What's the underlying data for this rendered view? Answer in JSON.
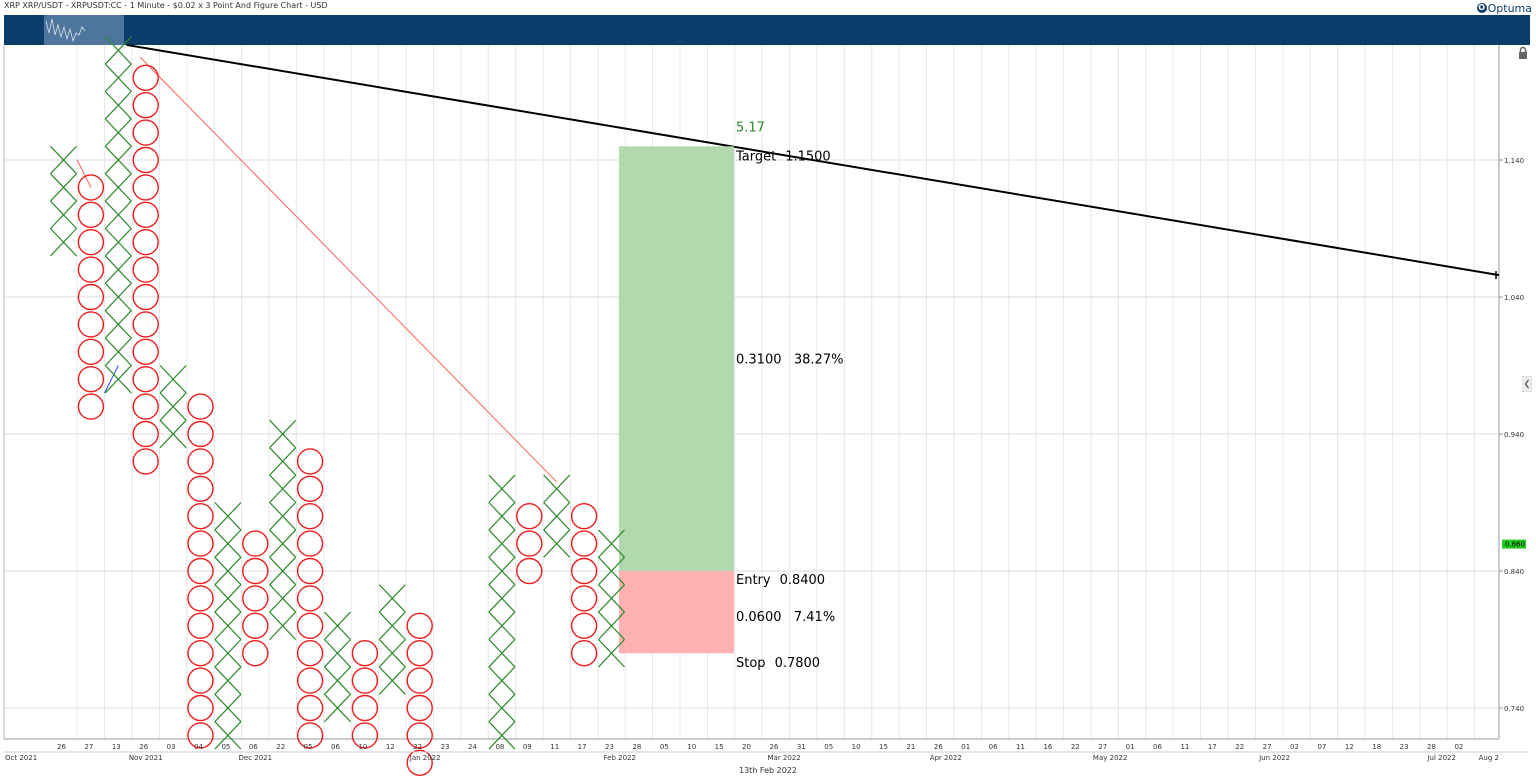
{
  "title": "XRP XRP/USDT - XRPUSDT:CC - 1 Minute - $0.02 x 3 Point And Figure Chart - USD",
  "brand": "Optuma",
  "footer_date": "13th Feb 2022",
  "colors": {
    "x": "#2a8a2a",
    "o": "#ee1c1c",
    "trend": "#000000",
    "reward": "#b2d8ae",
    "risk": "#ffb0b0",
    "last_price_bg": "#22cc22",
    "nav": "#0b3d6b"
  },
  "icons": {
    "lock": "lock-icon",
    "collapse": "chevron-left-icon"
  },
  "chart_data": {
    "type": "point-and-figure",
    "box_size": 0.02,
    "reversal": 3,
    "y_ticks": [
      "1.140",
      "1.040",
      "0.940",
      "0.840",
      "0.740"
    ],
    "ylim": [
      0.7,
      1.23
    ],
    "last_price": "0.860",
    "columns": [
      {
        "type": "X",
        "low": 1.08,
        "high": 1.14
      },
      {
        "type": "O",
        "low": 0.96,
        "high": 1.12
      },
      {
        "type": "X",
        "low": 0.98,
        "high": 1.22
      },
      {
        "type": "O",
        "low": 0.92,
        "high": 1.2
      },
      {
        "type": "X",
        "low": 0.94,
        "high": 0.98
      },
      {
        "type": "O",
        "low": 0.72,
        "high": 0.96
      },
      {
        "type": "X",
        "low": 0.72,
        "high": 0.88
      },
      {
        "type": "O",
        "low": 0.78,
        "high": 0.86
      },
      {
        "type": "X",
        "low": 0.8,
        "high": 0.94
      },
      {
        "type": "O",
        "low": 0.72,
        "high": 0.92
      },
      {
        "type": "X",
        "low": 0.74,
        "high": 0.8
      },
      {
        "type": "O",
        "low": 0.72,
        "high": 0.78
      },
      {
        "type": "X",
        "low": 0.76,
        "high": 0.82
      },
      {
        "type": "O",
        "low": 0.7,
        "high": 0.8
      },
      {
        "type": "X",
        "low": 0.72,
        "high": 0.9
      },
      {
        "type": "O",
        "low": 0.84,
        "high": 0.88
      },
      {
        "type": "X",
        "low": 0.86,
        "high": 0.9
      },
      {
        "type": "O",
        "low": 0.78,
        "high": 0.88
      },
      {
        "type": "X",
        "low": 0.78,
        "high": 0.86
      }
    ],
    "column_slots": [
      0,
      1,
      2,
      3,
      4,
      5,
      6,
      7,
      8,
      9,
      10,
      11,
      12,
      13,
      16,
      17,
      18,
      19,
      20
    ],
    "trendline": {
      "from": {
        "slot": 2.3,
        "price": 1.224
      },
      "to": {
        "slot": 53.2,
        "price": 1.056
      }
    },
    "bearish_line": {
      "from": {
        "slot": 2.8,
        "price": 1.215
      },
      "to": {
        "slot": 18,
        "price": 0.905
      }
    },
    "trade": {
      "target_label": "Target",
      "target_value": "1.1500",
      "target_price": 1.15,
      "entry_label": "Entry",
      "entry_value": "0.8400",
      "entry_price": 0.84,
      "stop_label": "Stop",
      "stop_value": "0.7800",
      "stop_price": 0.78,
      "reward_text": "0.3100   38.27%",
      "risk_text": "0.0600   7.41%",
      "ratio": "5.17"
    },
    "x_ticks": [
      "26",
      "27",
      "13",
      "26",
      "03",
      "04",
      "05",
      "06",
      "22",
      "05",
      "06",
      "10",
      "12",
      "22",
      "23",
      "24",
      "08",
      "09",
      "11",
      "17",
      "23",
      "28",
      "05",
      "10",
      "15",
      "20",
      "26",
      "31",
      "05",
      "10",
      "15",
      "21",
      "26",
      "01",
      "06",
      "11",
      "16",
      "22",
      "27",
      "01",
      "06",
      "11",
      "17",
      "22",
      "27",
      "02",
      "07",
      "12",
      "18",
      "23",
      "28",
      "02"
    ],
    "month_labels": [
      {
        "label": "Oct 2021",
        "slot": -0.5
      },
      {
        "label": "Nov 2021",
        "slot": 3
      },
      {
        "label": "Dec 2021",
        "slot": 7
      },
      {
        "label": "Jan 2022",
        "slot": 13.2
      },
      {
        "label": "Feb 2022",
        "slot": 20.3
      },
      {
        "label": "Mar 2022",
        "slot": 26.3
      },
      {
        "label": "Apr 2022",
        "slot": 32.2
      },
      {
        "label": "May 2022",
        "slot": 38.2
      },
      {
        "label": "Jun 2022",
        "slot": 44.2
      },
      {
        "label": "Jul 2022",
        "slot": 50.3
      },
      {
        "label": "Aug 2",
        "slot": 53.6
      }
    ]
  }
}
